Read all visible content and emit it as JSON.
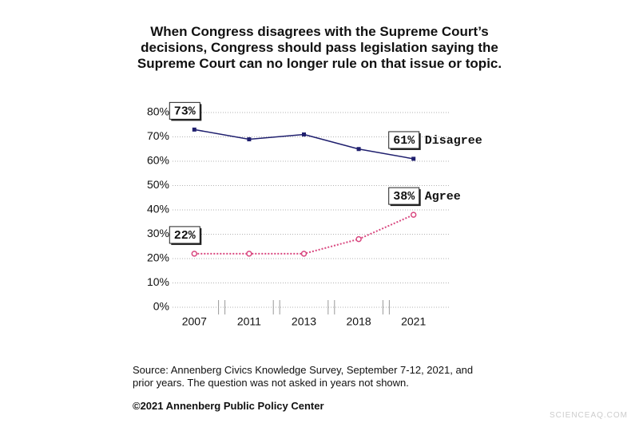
{
  "chart_data": {
    "type": "line",
    "title": "When Congress disagrees with the Supreme Court’s decisions, Congress should pass legislation saying the Supreme Court can no longer rule on that issue or topic.",
    "categories": [
      "2007",
      "2011",
      "2013",
      "2018",
      "2021"
    ],
    "series": [
      {
        "name": "Disagree",
        "color": "#1f1f6e",
        "values": [
          73,
          69,
          71,
          65,
          61
        ],
        "value_labels": [
          "73%",
          null,
          null,
          null,
          "61%"
        ]
      },
      {
        "name": "Agree",
        "color": "#d9477f",
        "values": [
          22,
          22,
          22,
          28,
          38
        ],
        "value_labels": [
          "22%",
          null,
          null,
          null,
          "38%"
        ]
      }
    ],
    "ylim": [
      0,
      80
    ],
    "yticks": [
      {
        "value": 0,
        "label": "0%"
      },
      {
        "value": 10,
        "label": "10%"
      },
      {
        "value": 20,
        "label": "20%"
      },
      {
        "value": 30,
        "label": "30%"
      },
      {
        "value": 40,
        "label": "40%"
      },
      {
        "value": 50,
        "label": "50%"
      },
      {
        "value": 60,
        "label": "60%"
      },
      {
        "value": 70,
        "label": "70%"
      },
      {
        "value": 80,
        "label": "80%"
      }
    ],
    "grid": true,
    "source": "Source: Annenberg Civics Knowledge Survey, September 7-12, 2021, and prior years. The question was not asked in years not shown.",
    "copyright": "©2021 Annenberg Public Policy Center",
    "watermark": "SCIENCEAQ.COM"
  }
}
